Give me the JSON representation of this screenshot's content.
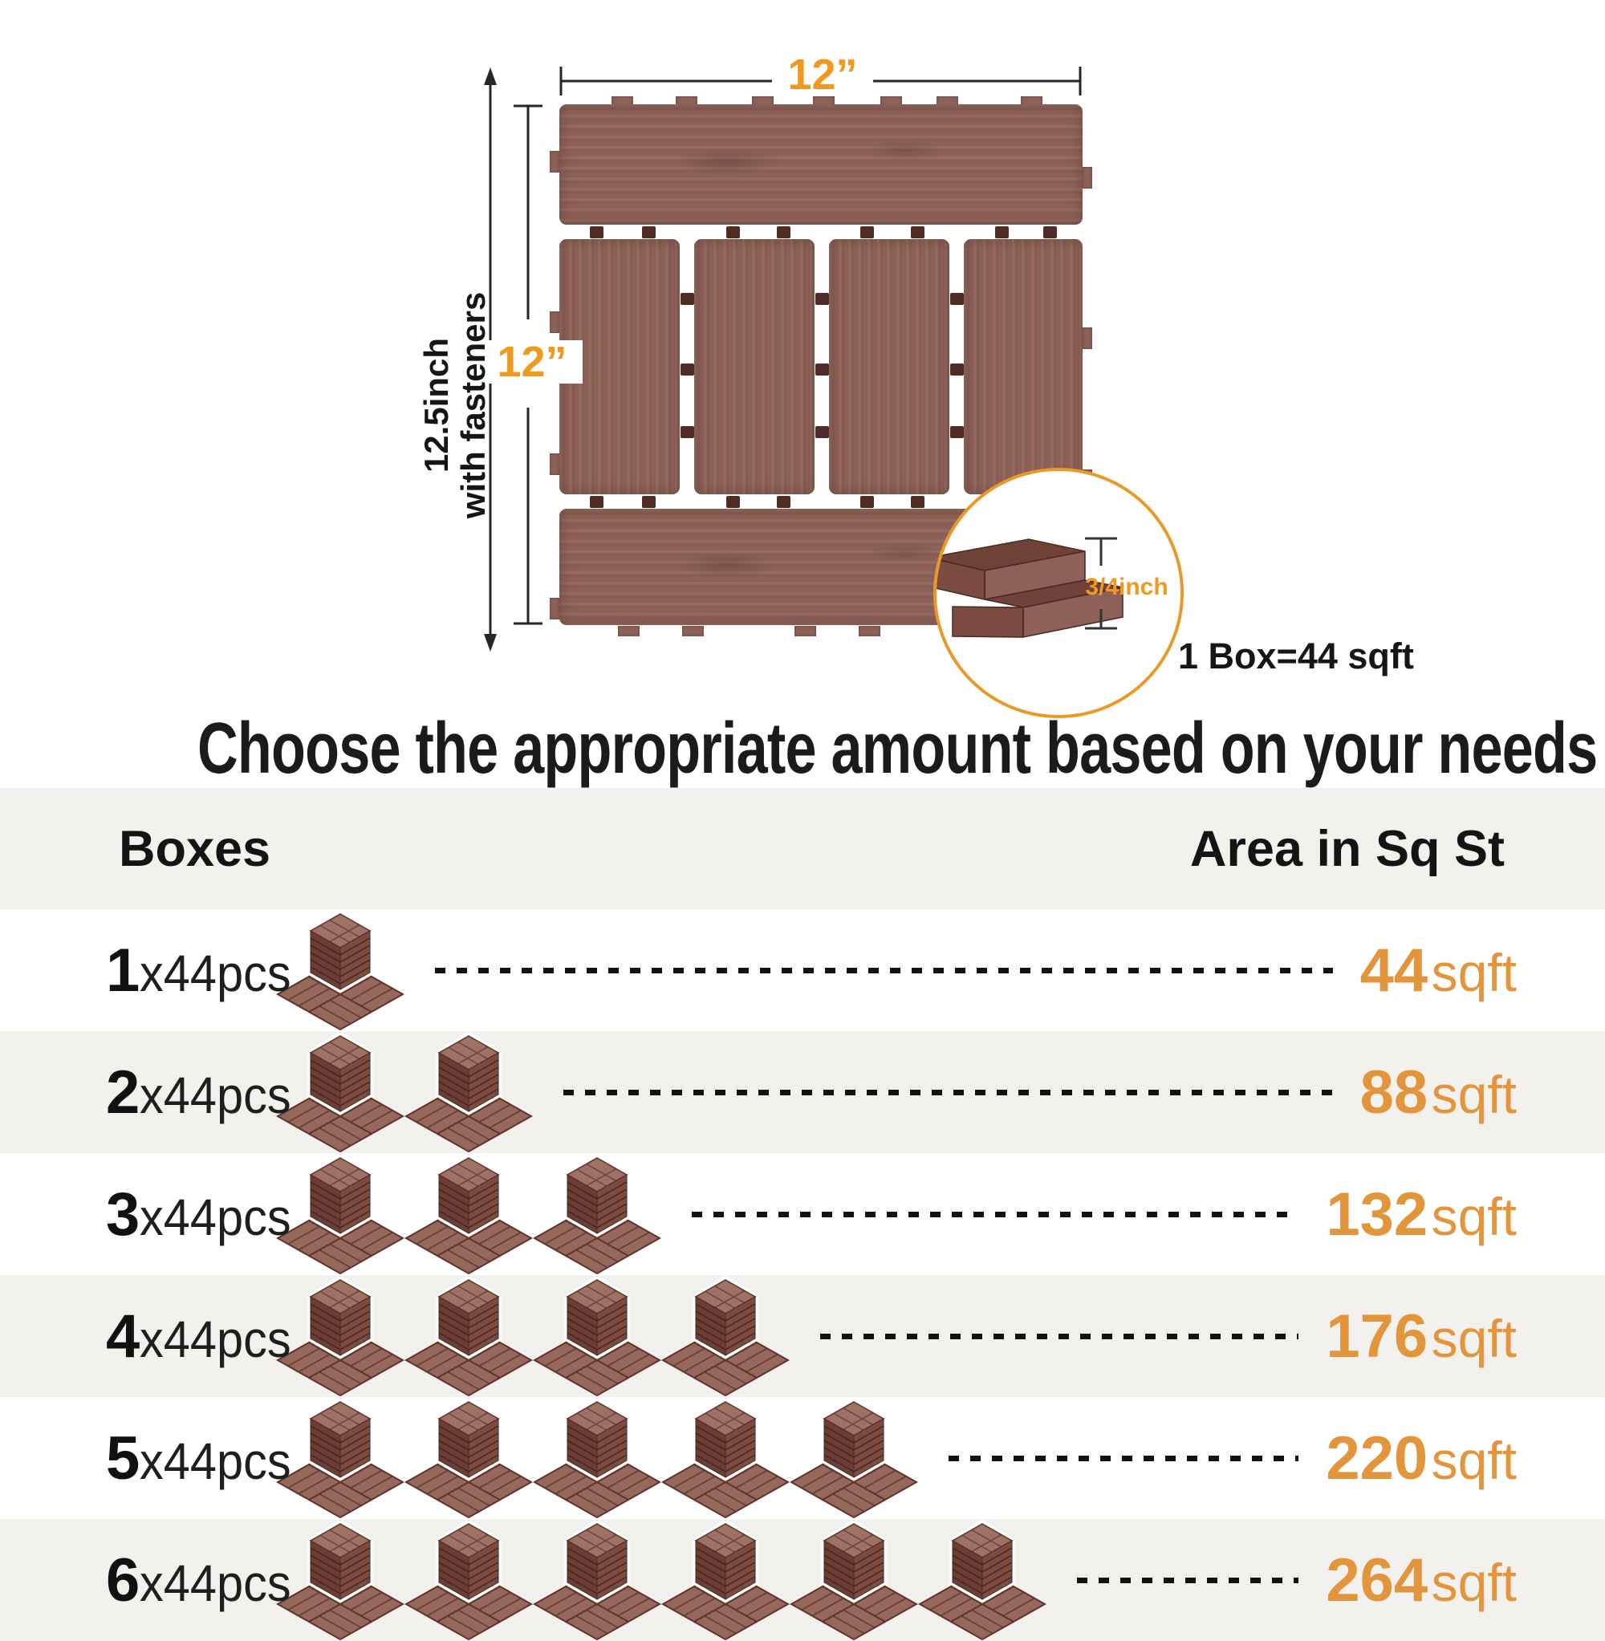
{
  "diagram": {
    "top_width_label": "12”",
    "side_height_label": "12”",
    "outer_height_label": [
      "12.5inch",
      "with fasteners"
    ],
    "thickness_label": "3/4inch",
    "box_note": "1 Box=44 sqft"
  },
  "title": "Choose the appropriate amount based on your needs",
  "table": {
    "headers": {
      "left": "Boxes",
      "right": "Area in Sq St"
    },
    "suffix": "x44pcs",
    "unit": "sqft",
    "rows": [
      {
        "boxes": 1,
        "area": 44
      },
      {
        "boxes": 2,
        "area": 88
      },
      {
        "boxes": 3,
        "area": 132
      },
      {
        "boxes": 4,
        "area": 176
      },
      {
        "boxes": 5,
        "area": 220
      },
      {
        "boxes": 6,
        "area": 264
      }
    ]
  },
  "colors": {
    "accent_labels": "#ef9a1e",
    "accent_values": "#e2953a",
    "circle_border": "#ea9827",
    "tile_brown": "#8d6157",
    "tile_dark": "#4f2d26",
    "band_gray": "#f2f1ee",
    "text": "#1c1c1c"
  }
}
